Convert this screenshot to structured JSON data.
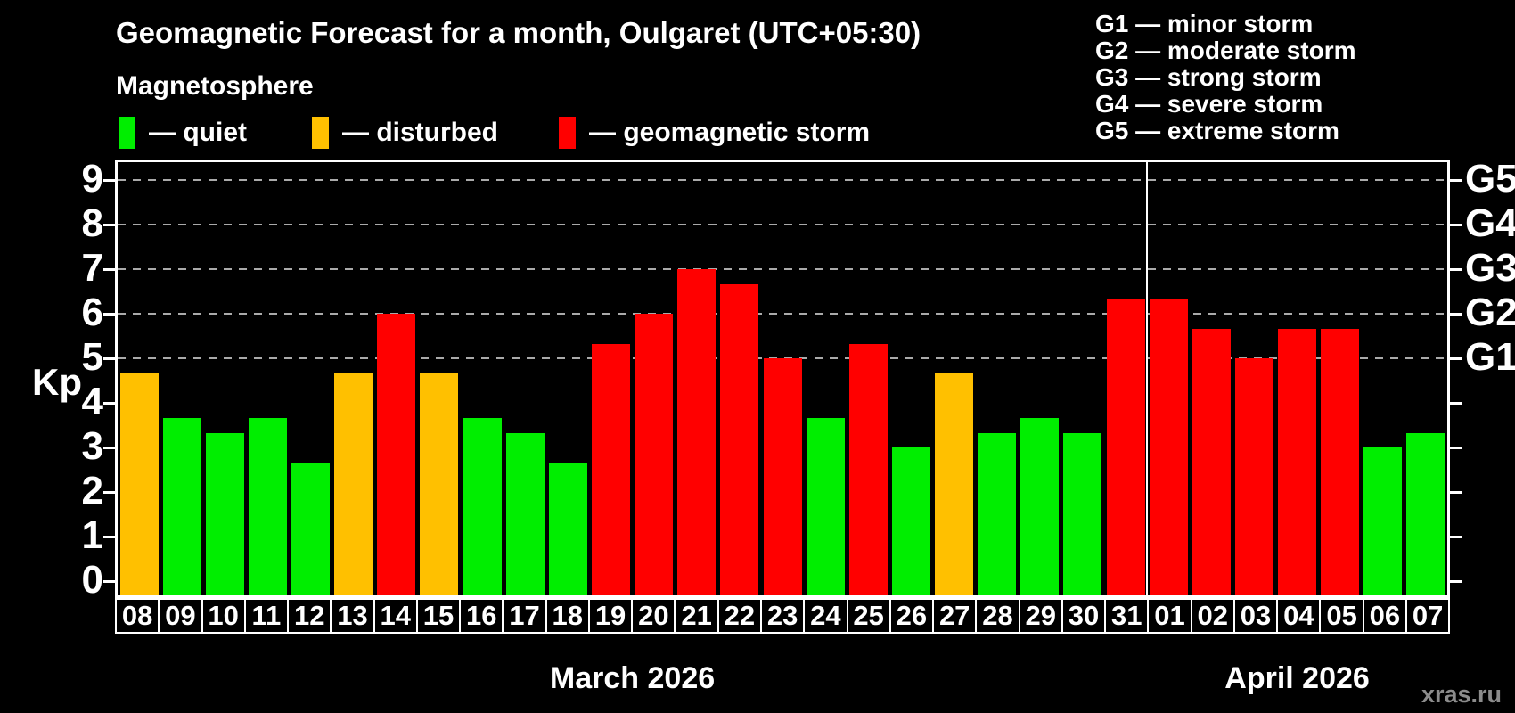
{
  "header": {
    "title": "Geomagnetic Forecast for a month, Oulgaret (UTC+05:30)",
    "subtitle": "Magnetosphere"
  },
  "g_scale_legend": {
    "items": [
      "G1 — minor storm",
      "G2 — moderate storm",
      "G3 — strong storm",
      "G4 — severe storm",
      "G5 — extreme storm"
    ]
  },
  "colors": {
    "quiet": "#00ee00",
    "disturbed": "#ffc000",
    "storm": "#ff0000",
    "grid": "#aaaaaa",
    "axis": "#ffffff",
    "watermark": "#8c8c8c"
  },
  "chart_data": {
    "type": "bar",
    "title": "Geomagnetic Forecast for a month, Oulgaret (UTC+05:30)",
    "subtitle": "Magnetosphere",
    "ylabel": "Kp",
    "ylim": [
      0,
      9
    ],
    "yticks": [
      0,
      1,
      2,
      3,
      4,
      5,
      6,
      7,
      8,
      9
    ],
    "gridlines": [
      5,
      6,
      7,
      8,
      9
    ],
    "grid": true,
    "legend_position": "top",
    "legend": [
      {
        "status": "quiet",
        "label": "— quiet",
        "color": "#00ee00"
      },
      {
        "status": "disturbed",
        "label": "— disturbed",
        "color": "#ffc000"
      },
      {
        "status": "storm",
        "label": "— geomagnetic storm",
        "color": "#ff0000"
      }
    ],
    "right_axis": [
      {
        "kp": 5,
        "label": "G1"
      },
      {
        "kp": 6,
        "label": "G2"
      },
      {
        "kp": 7,
        "label": "G3"
      },
      {
        "kp": 8,
        "label": "G4"
      },
      {
        "kp": 9,
        "label": "G5"
      }
    ],
    "categories": [
      "08",
      "09",
      "10",
      "11",
      "12",
      "13",
      "14",
      "15",
      "16",
      "17",
      "18",
      "19",
      "20",
      "21",
      "22",
      "23",
      "24",
      "25",
      "26",
      "27",
      "28",
      "29",
      "30",
      "31",
      "01",
      "02",
      "03",
      "04",
      "05",
      "06",
      "07"
    ],
    "values": [
      4.67,
      3.67,
      3.33,
      3.67,
      2.67,
      4.67,
      6,
      4.67,
      3.67,
      3.33,
      2.67,
      5.33,
      6,
      7,
      6.67,
      5,
      3.67,
      5.33,
      3,
      4.67,
      3.33,
      3.67,
      3.33,
      6.33,
      6.33,
      5.67,
      5,
      5.67,
      5.67,
      3,
      3.33
    ],
    "statuses": [
      "disturbed",
      "quiet",
      "quiet",
      "quiet",
      "quiet",
      "disturbed",
      "storm",
      "disturbed",
      "quiet",
      "quiet",
      "quiet",
      "storm",
      "storm",
      "storm",
      "storm",
      "storm",
      "quiet",
      "storm",
      "quiet",
      "disturbed",
      "quiet",
      "quiet",
      "quiet",
      "storm",
      "storm",
      "storm",
      "storm",
      "storm",
      "storm",
      "quiet",
      "quiet"
    ],
    "months": [
      {
        "label": "March 2026",
        "days": 24
      },
      {
        "label": "April 2026",
        "days": 7
      }
    ]
  },
  "watermark": "xras.ru"
}
